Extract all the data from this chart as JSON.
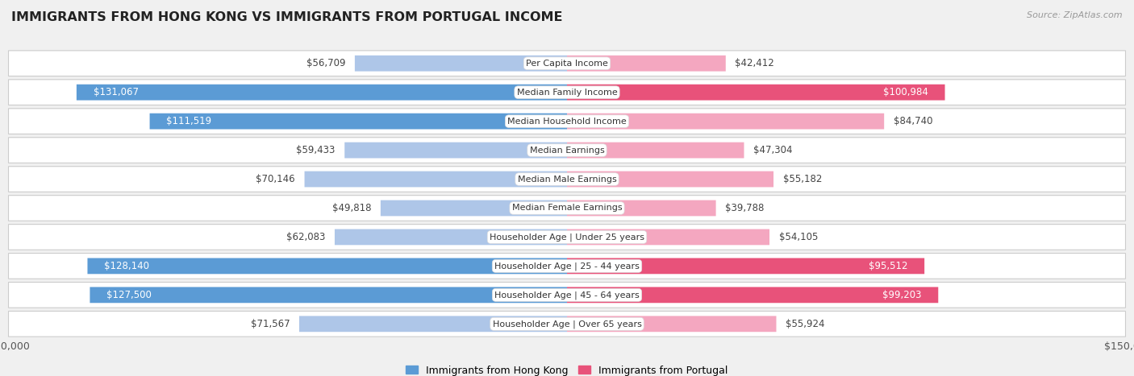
{
  "title": "IMMIGRANTS FROM HONG KONG VS IMMIGRANTS FROM PORTUGAL INCOME",
  "source": "Source: ZipAtlas.com",
  "categories": [
    "Per Capita Income",
    "Median Family Income",
    "Median Household Income",
    "Median Earnings",
    "Median Male Earnings",
    "Median Female Earnings",
    "Householder Age | Under 25 years",
    "Householder Age | 25 - 44 years",
    "Householder Age | 45 - 64 years",
    "Householder Age | Over 65 years"
  ],
  "hong_kong_values": [
    56709,
    131067,
    111519,
    59433,
    70146,
    49818,
    62083,
    128140,
    127500,
    71567
  ],
  "portugal_values": [
    42412,
    100984,
    84740,
    47304,
    55182,
    39788,
    54105,
    95512,
    99203,
    55924
  ],
  "hong_kong_labels": [
    "$56,709",
    "$131,067",
    "$111,519",
    "$59,433",
    "$70,146",
    "$49,818",
    "$62,083",
    "$128,140",
    "$127,500",
    "$71,567"
  ],
  "portugal_labels": [
    "$42,412",
    "$100,984",
    "$84,740",
    "$47,304",
    "$55,182",
    "$39,788",
    "$54,105",
    "$95,512",
    "$99,203",
    "$55,924"
  ],
  "hong_kong_color_light": "#aec6e8",
  "hong_kong_color_dark": "#5b9bd5",
  "portugal_color_light": "#f4a7c0",
  "portugal_color_dark": "#e8527a",
  "max_value": 150000,
  "background_color": "#f0f0f0",
  "row_bg_color": "#ffffff",
  "row_border_color": "#cccccc",
  "legend_hk": "Immigrants from Hong Kong",
  "legend_pt": "Immigrants from Portugal",
  "threshold_dark_label": 90000,
  "label_fontsize": 8.5,
  "cat_fontsize": 8.0,
  "title_fontsize": 11.5,
  "source_fontsize": 8.0
}
